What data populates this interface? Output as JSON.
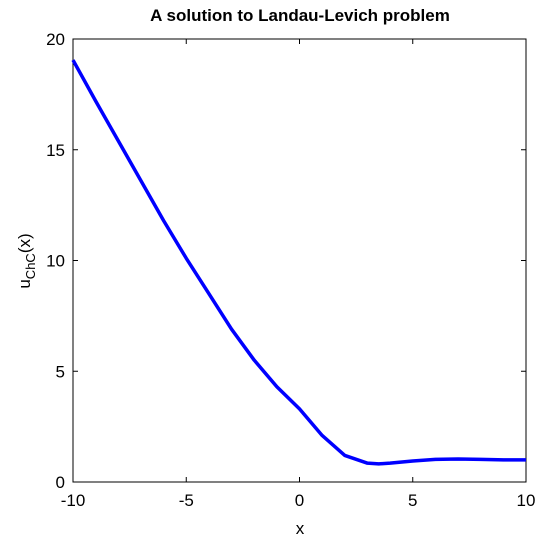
{
  "chart_data": {
    "type": "line",
    "title": "A solution to Landau-Levich problem",
    "xlabel": "x",
    "ylabel": "u",
    "ylabel_subscript": "ChC",
    "ylabel_suffix": "(x)",
    "x": [
      -10,
      -9,
      -8,
      -7,
      -6,
      -5,
      -4,
      -3,
      -2,
      -1,
      0,
      1,
      2,
      3,
      3.5,
      4,
      5,
      6,
      7,
      8,
      9,
      10
    ],
    "series": [
      {
        "name": "u",
        "color": "#0000ff",
        "values": [
          19.05,
          17.2,
          15.4,
          13.6,
          11.8,
          10.1,
          8.5,
          6.9,
          5.5,
          4.3,
          3.3,
          2.1,
          1.2,
          0.85,
          0.82,
          0.85,
          0.95,
          1.02,
          1.04,
          1.02,
          1.0,
          1.0
        ]
      }
    ],
    "xlim": [
      -10,
      10
    ],
    "ylim": [
      0,
      20
    ],
    "xticks": [
      -10,
      -5,
      0,
      5,
      10
    ],
    "yticks": [
      0,
      5,
      10,
      15,
      20
    ],
    "grid": false
  }
}
